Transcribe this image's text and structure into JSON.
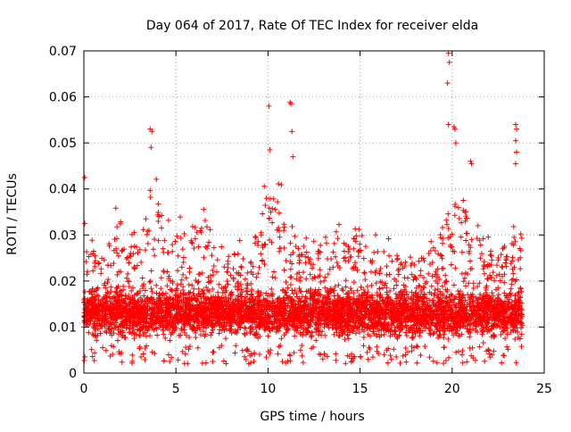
{
  "chart_data": {
    "type": "scatter",
    "title": "Day 064 of 2017, Rate Of TEC Index for receiver elda",
    "xlabel": "GPS time / hours",
    "ylabel": "ROTI / TECUs",
    "xlim": [
      0,
      25
    ],
    "ylim": [
      0,
      0.07
    ],
    "grid": true,
    "marker": "+",
    "series_color": "#ff0000",
    "axis_color": "#000000",
    "grid_color": "#a0a0a0",
    "x_ticks": [
      0,
      5,
      10,
      15,
      20,
      25
    ],
    "x_tick_labels": [
      "0",
      "5",
      "10",
      "15",
      "20",
      "25"
    ],
    "y_ticks": [
      0,
      0.01,
      0.02,
      0.03,
      0.04,
      0.05,
      0.06,
      0.07
    ],
    "y_tick_labels": [
      "0",
      "0.01",
      "0.02",
      "0.03",
      "0.04",
      "0.05",
      "0.06",
      "0.07"
    ],
    "profile": {
      "time_range_hours": [
        0,
        23.8
      ],
      "typical_range": [
        0.005,
        0.02
      ],
      "baseline_median": 0.011,
      "envelope_hours": [
        0,
        1,
        2,
        3,
        3.7,
        5,
        6,
        7,
        8,
        9,
        10,
        11,
        12,
        13,
        14,
        15,
        16,
        17,
        18,
        19,
        19.8,
        20.5,
        21,
        22,
        23,
        23.8
      ],
      "envelope_upper": [
        0.03,
        0.03,
        0.038,
        0.03,
        0.05,
        0.033,
        0.038,
        0.035,
        0.03,
        0.028,
        0.045,
        0.04,
        0.03,
        0.035,
        0.032,
        0.035,
        0.03,
        0.03,
        0.028,
        0.03,
        0.04,
        0.045,
        0.035,
        0.03,
        0.032,
        0.035
      ]
    },
    "notable_points": [
      {
        "x": 0.05,
        "y": 0.0425
      },
      {
        "x": 0.05,
        "y": 0.0325
      },
      {
        "x": 3.6,
        "y": 0.053
      },
      {
        "x": 3.7,
        "y": 0.0525
      },
      {
        "x": 3.65,
        "y": 0.049
      },
      {
        "x": 10.05,
        "y": 0.058
      },
      {
        "x": 10.1,
        "y": 0.0485
      },
      {
        "x": 11.2,
        "y": 0.0588
      },
      {
        "x": 11.25,
        "y": 0.0585
      },
      {
        "x": 11.3,
        "y": 0.0525
      },
      {
        "x": 11.35,
        "y": 0.047
      },
      {
        "x": 19.8,
        "y": 0.0695
      },
      {
        "x": 19.85,
        "y": 0.0675
      },
      {
        "x": 19.75,
        "y": 0.063
      },
      {
        "x": 19.8,
        "y": 0.054
      },
      {
        "x": 20.1,
        "y": 0.0535
      },
      {
        "x": 20.15,
        "y": 0.053
      },
      {
        "x": 20.2,
        "y": 0.05
      },
      {
        "x": 23.45,
        "y": 0.054
      },
      {
        "x": 23.5,
        "y": 0.053
      },
      {
        "x": 23.45,
        "y": 0.0505
      },
      {
        "x": 23.5,
        "y": 0.048
      },
      {
        "x": 23.45,
        "y": 0.0455
      },
      {
        "x": 21.0,
        "y": 0.046
      },
      {
        "x": 21.05,
        "y": 0.0455
      }
    ]
  }
}
